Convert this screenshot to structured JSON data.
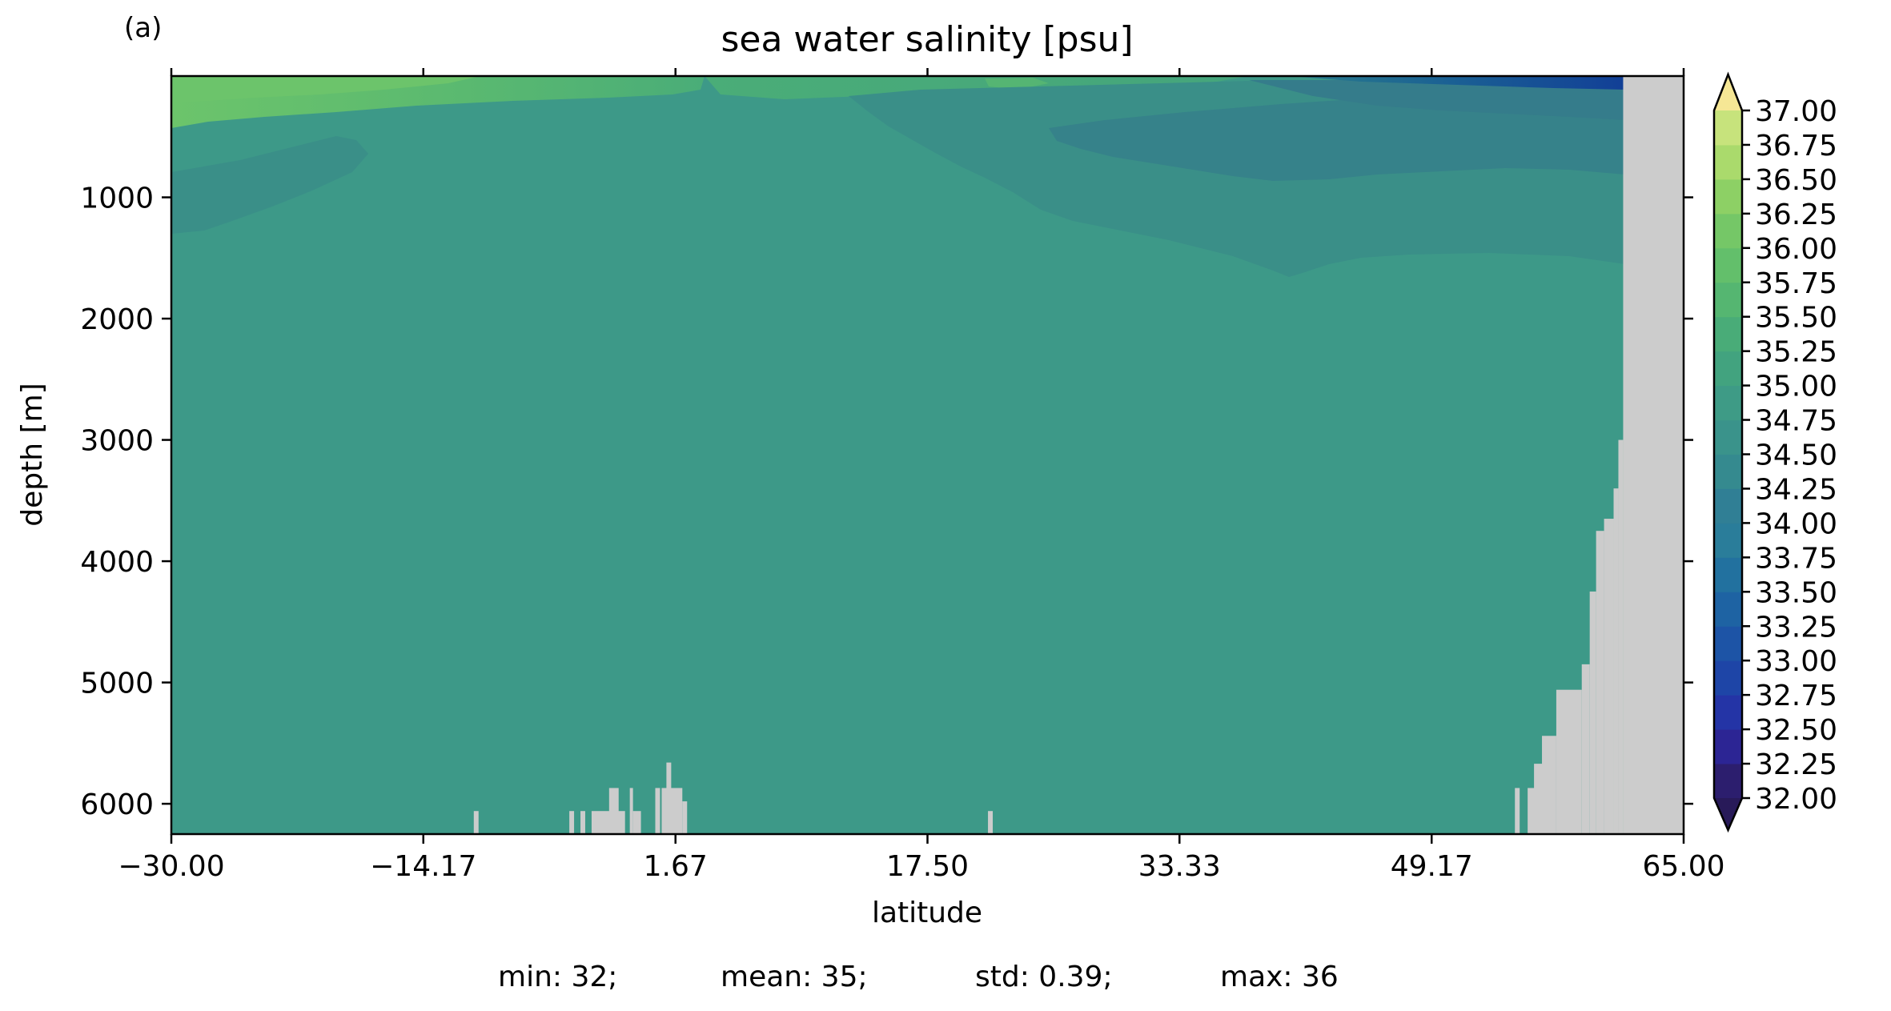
{
  "panel_label": "(a)",
  "chart_data": {
    "type": "heatmap",
    "title": "sea water salinity [psu]",
    "xlabel": "latitude",
    "ylabel": "depth [m]",
    "xlim": [
      -30.0,
      65.0
    ],
    "ylim": [
      6250,
      0
    ],
    "x_ticks": [
      -30.0,
      -14.17,
      1.67,
      17.5,
      33.33,
      49.17,
      65.0
    ],
    "x_tick_labels": [
      "−30.00",
      "−14.17",
      "1.67",
      "17.50",
      "33.33",
      "49.17",
      "65.00"
    ],
    "y_ticks": [
      1000,
      2000,
      3000,
      4000,
      5000,
      6000
    ],
    "y_tick_labels": [
      "1000",
      "2000",
      "3000",
      "4000",
      "5000",
      "6000"
    ],
    "colorbar": {
      "levels": [
        32.0,
        32.25,
        32.5,
        32.75,
        33.0,
        33.25,
        33.5,
        33.75,
        34.0,
        34.25,
        34.5,
        34.75,
        35.0,
        35.25,
        35.5,
        35.75,
        36.0,
        36.25,
        36.5,
        36.75,
        37.0
      ],
      "tick_labels": [
        "32.00",
        "32.25",
        "32.50",
        "32.75",
        "33.00",
        "33.25",
        "33.50",
        "33.75",
        "34.00",
        "34.25",
        "34.50",
        "34.75",
        "35.00",
        "35.25",
        "35.50",
        "35.75",
        "36.00",
        "36.25",
        "36.50",
        "36.75",
        "37.00"
      ],
      "extend": "both"
    },
    "background_salinity": 34.6,
    "features": [
      {
        "name": "surface-high-salinity-south",
        "salinity": 35.6,
        "lat": [
          -30,
          2
        ],
        "depth": [
          0,
          300
        ]
      },
      {
        "name": "mid-depth-low-salinity-south",
        "salinity": 34.3,
        "lat": [
          -30,
          -6
        ],
        "depth": [
          300,
          1300
        ]
      },
      {
        "name": "mid-depth-low-salinity-north",
        "salinity": 34.3,
        "lat": [
          18,
          63
        ],
        "depth": [
          300,
          1700
        ]
      },
      {
        "name": "surface-fresh-north",
        "salinity": 33.0,
        "lat": [
          57,
          63
        ],
        "depth": [
          0,
          120
        ]
      }
    ],
    "bathymetry": [
      {
        "lat": [
          -11,
          -10.7
        ],
        "top_depth": 6060
      },
      {
        "lat": [
          -5,
          -4.7
        ],
        "top_depth": 6060
      },
      {
        "lat": [
          -4.3,
          -4
        ],
        "top_depth": 6060
      },
      {
        "lat": [
          -3.6,
          -1.5
        ],
        "top_depth": 6060
      },
      {
        "lat": [
          -2.5,
          -1.9
        ],
        "top_depth": 5870
      },
      {
        "lat": [
          -1.2,
          -1.0
        ],
        "top_depth": 5870
      },
      {
        "lat": [
          -1.0,
          -0.5
        ],
        "top_depth": 6060
      },
      {
        "lat": [
          0.4,
          0.7
        ],
        "top_depth": 5870
      },
      {
        "lat": [
          0.8,
          2.1
        ],
        "top_depth": 5870
      },
      {
        "lat": [
          1.1,
          1.4
        ],
        "top_depth": 5660
      },
      {
        "lat": [
          2.1,
          2.4
        ],
        "top_depth": 5980
      },
      {
        "lat": [
          21.3,
          21.6
        ],
        "top_depth": 6060
      },
      {
        "lat": [
          54.4,
          54.7
        ],
        "top_depth": 5870
      },
      {
        "lat": [
          55.2,
          56.0
        ],
        "top_depth": 5870
      },
      {
        "lat": [
          55.6,
          56.2
        ],
        "top_depth": 5670
      },
      {
        "lat": [
          56.1,
          57.0
        ],
        "top_depth": 5440
      },
      {
        "lat": [
          57.0,
          58.6
        ],
        "top_depth": 5060
      },
      {
        "lat": [
          58.6,
          59.1
        ],
        "top_depth": 4850
      },
      {
        "lat": [
          59.1,
          59.5
        ],
        "top_depth": 4250
      },
      {
        "lat": [
          59.5,
          60.0
        ],
        "top_depth": 3750
      },
      {
        "lat": [
          60.0,
          60.6
        ],
        "top_depth": 3650
      },
      {
        "lat": [
          60.6,
          60.9
        ],
        "top_depth": 3400
      },
      {
        "lat": [
          60.9,
          61.2
        ],
        "top_depth": 3000
      },
      {
        "lat": [
          61.2,
          65.0
        ],
        "top_depth": 0
      }
    ]
  },
  "stats": {
    "min": "min: 32;",
    "mean": "mean: 35;",
    "std": "std: 0.39;",
    "max": "max: 36"
  },
  "colors": {
    "land": "#cccccc",
    "background_fill": "#3d9988",
    "axis": "#000000"
  }
}
